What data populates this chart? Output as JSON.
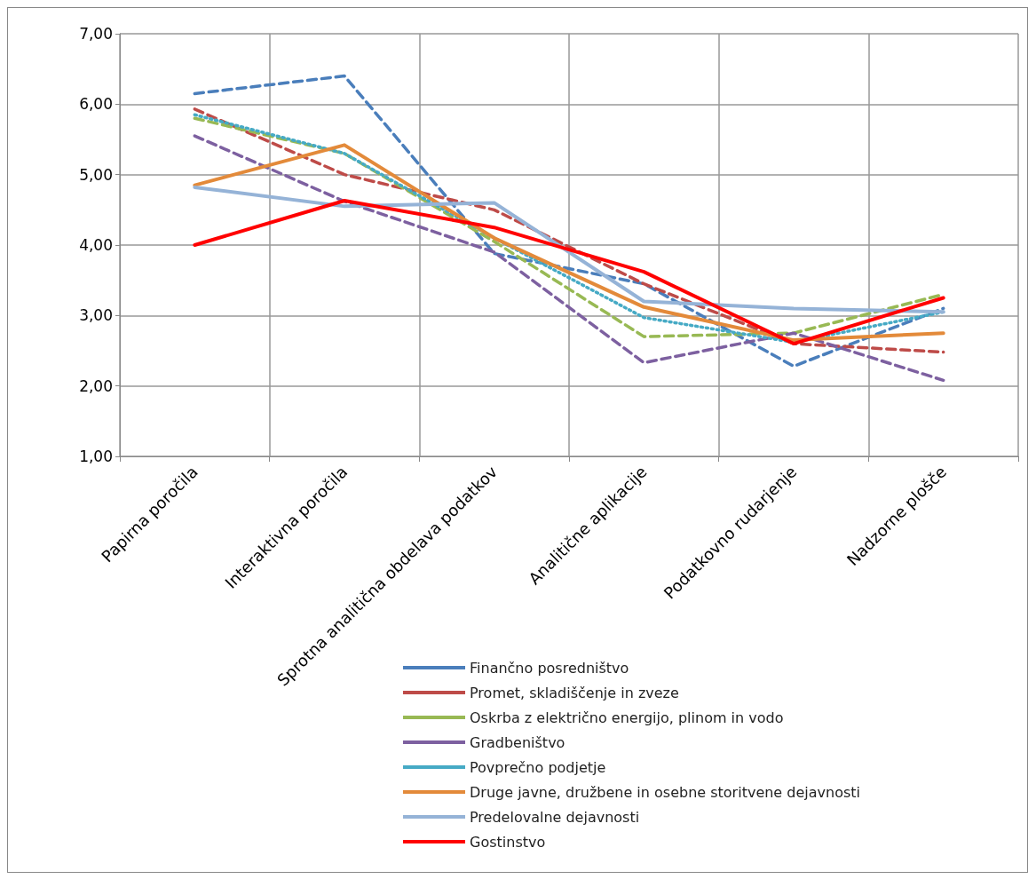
{
  "chart_data": {
    "type": "line",
    "categories": [
      "Papirna poročila",
      "Interaktivna poročila",
      "Sprotna analitična obdelava podatkov",
      "Analitične aplikacije",
      "Podatkovno rudarjenje",
      "Nadzorne plošče"
    ],
    "series": [
      {
        "name": "Finančno posredništvo",
        "color": "#4a7ebb",
        "line_style": "dashed",
        "values": [
          6.15,
          6.4,
          3.88,
          3.45,
          2.28,
          3.1
        ]
      },
      {
        "name": "Promet, skladiščenje in zveze",
        "color": "#be4b48",
        "line_style": "dashed",
        "values": [
          5.93,
          5.0,
          4.5,
          3.45,
          2.6,
          2.48
        ]
      },
      {
        "name": "Oskrba z električno energijo, plinom in vodo",
        "color": "#98b954",
        "line_style": "dashed",
        "values": [
          5.8,
          5.3,
          4.05,
          2.7,
          2.75,
          3.3
        ]
      },
      {
        "name": "Gradbeništvo",
        "color": "#7d60a0",
        "line_style": "dashed",
        "values": [
          5.55,
          4.62,
          3.9,
          2.33,
          2.75,
          2.08
        ]
      },
      {
        "name": "Povprečno podjetje",
        "color": "#46aac5",
        "line_style": "dotted",
        "values": [
          5.85,
          5.3,
          4.1,
          2.97,
          2.62,
          3.05
        ]
      },
      {
        "name": "Druge javne, družbene in osebne storitvene dejavnosti",
        "color": "#e38a3a",
        "line_style": "solid",
        "values": [
          4.85,
          5.42,
          4.1,
          3.12,
          2.65,
          2.75
        ]
      },
      {
        "name": "Predelovalne dejavnosti",
        "color": "#95b3d7",
        "line_style": "solid",
        "values": [
          4.82,
          4.55,
          4.6,
          3.2,
          3.1,
          3.05
        ]
      },
      {
        "name": "Gostinstvo",
        "color": "#ff0000",
        "line_style": "solid",
        "values": [
          4.0,
          4.63,
          4.25,
          3.62,
          2.6,
          3.25
        ]
      }
    ],
    "ylim": [
      1,
      7
    ],
    "yticks": [
      {
        "value": 1,
        "label": "1,00"
      },
      {
        "value": 2,
        "label": "2,00"
      },
      {
        "value": 3,
        "label": "3,00"
      },
      {
        "value": 4,
        "label": "4,00"
      },
      {
        "value": 5,
        "label": "5,00"
      },
      {
        "value": 6,
        "label": "6,00"
      },
      {
        "value": 7,
        "label": "7,00"
      }
    ],
    "grid": true,
    "legend": "bottom",
    "marker": "none"
  }
}
